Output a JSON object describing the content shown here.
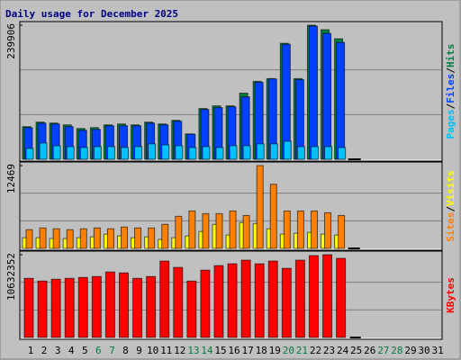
{
  "title": "Daily usage for December 2025",
  "legend_separator": "/",
  "chart_data": [
    {
      "type": "bar",
      "ylim": [
        0,
        239906
      ],
      "yticks": [
        239906
      ],
      "grid": true,
      "series": [
        {
          "name": "Hits",
          "color": "#008040",
          "values": [
            58400,
            66500,
            64800,
            61600,
            55100,
            56700,
            61600,
            63200,
            61600,
            66500,
            63200,
            69700,
            45400,
            90800,
            95600,
            95600,
            118300,
            139400,
            144300,
            207500,
            144300,
            239906,
            231800,
            215600,
            0,
            null,
            null,
            null,
            null,
            null,
            null
          ]
        },
        {
          "name": "Files",
          "color": "#0040ff",
          "values": [
            56700,
            64800,
            63200,
            58400,
            51900,
            53500,
            60000,
            60000,
            60000,
            64800,
            61600,
            68100,
            45000,
            89200,
            92400,
            94000,
            111800,
            137800,
            143800,
            205900,
            142600,
            238300,
            225300,
            209100,
            0,
            null,
            null,
            null,
            null,
            null,
            null
          ]
        },
        {
          "name": "Pages",
          "color": "#00c0ff",
          "values": [
            19500,
            29200,
            24300,
            22700,
            21100,
            22700,
            22700,
            21100,
            22700,
            27600,
            25900,
            24300,
            21100,
            22700,
            21100,
            24300,
            24300,
            27600,
            27600,
            32400,
            22700,
            22700,
            22700,
            21100,
            0,
            null,
            null,
            null,
            null,
            null,
            null
          ]
        }
      ]
    },
    {
      "type": "bar",
      "ylim": [
        0,
        12469
      ],
      "yticks": [
        12469
      ],
      "grid": true,
      "series": [
        {
          "name": "Visits",
          "color": "#ffff00",
          "values": [
            1610,
            1610,
            1480,
            1480,
            1610,
            1740,
            2150,
            1880,
            1610,
            1740,
            1340,
            1610,
            1880,
            2550,
            3620,
            2010,
            3890,
            3750,
            2950,
            2150,
            2280,
            2410,
            2150,
            2010,
            0,
            null,
            null,
            null,
            null,
            null,
            null
          ]
        },
        {
          "name": "Sites",
          "color": "#ff8000",
          "values": [
            2820,
            3080,
            2950,
            2820,
            2950,
            3080,
            2950,
            3220,
            3080,
            3080,
            3620,
            4830,
            5630,
            5230,
            5230,
            5630,
            4960,
            12469,
            9660,
            5630,
            5630,
            5630,
            5360,
            4960,
            0,
            null,
            null,
            null,
            null,
            null,
            null
          ]
        }
      ]
    },
    {
      "type": "bar",
      "ylim": [
        0,
        10632352
      ],
      "yticks": [
        10632352
      ],
      "grid": true,
      "categories": [
        "1",
        "2",
        "3",
        "4",
        "5",
        "6",
        "7",
        "8",
        "9",
        "10",
        "11",
        "12",
        "13",
        "14",
        "15",
        "16",
        "17",
        "18",
        "19",
        "20",
        "21",
        "22",
        "23",
        "24",
        "25",
        "26",
        "27",
        "28",
        "29",
        "30",
        "31"
      ],
      "category_colors": [
        "#000000",
        "#000000",
        "#000000",
        "#000000",
        "#000000",
        "#008040",
        "#008040",
        "#000000",
        "#000000",
        "#000000",
        "#000000",
        "#000000",
        "#008040",
        "#008040",
        "#000000",
        "#000000",
        "#000000",
        "#000000",
        "#000000",
        "#008040",
        "#008040",
        "#000000",
        "#000000",
        "#000000",
        "#000000",
        "#000000",
        "#008040",
        "#008040",
        "#000000",
        "#000000",
        "#000000"
      ],
      "series": [
        {
          "name": "KBytes",
          "color": "#ff0000",
          "values": [
            7595000,
            7244000,
            7478000,
            7595000,
            7711000,
            7828000,
            8412000,
            8296000,
            7595000,
            7828000,
            9814000,
            8997000,
            7244000,
            8646000,
            9230000,
            9464000,
            9931000,
            9464000,
            9814000,
            8880000,
            9931000,
            10515000,
            10632352,
            10165000,
            0,
            null,
            null,
            null,
            null,
            null,
            null
          ]
        }
      ]
    }
  ]
}
